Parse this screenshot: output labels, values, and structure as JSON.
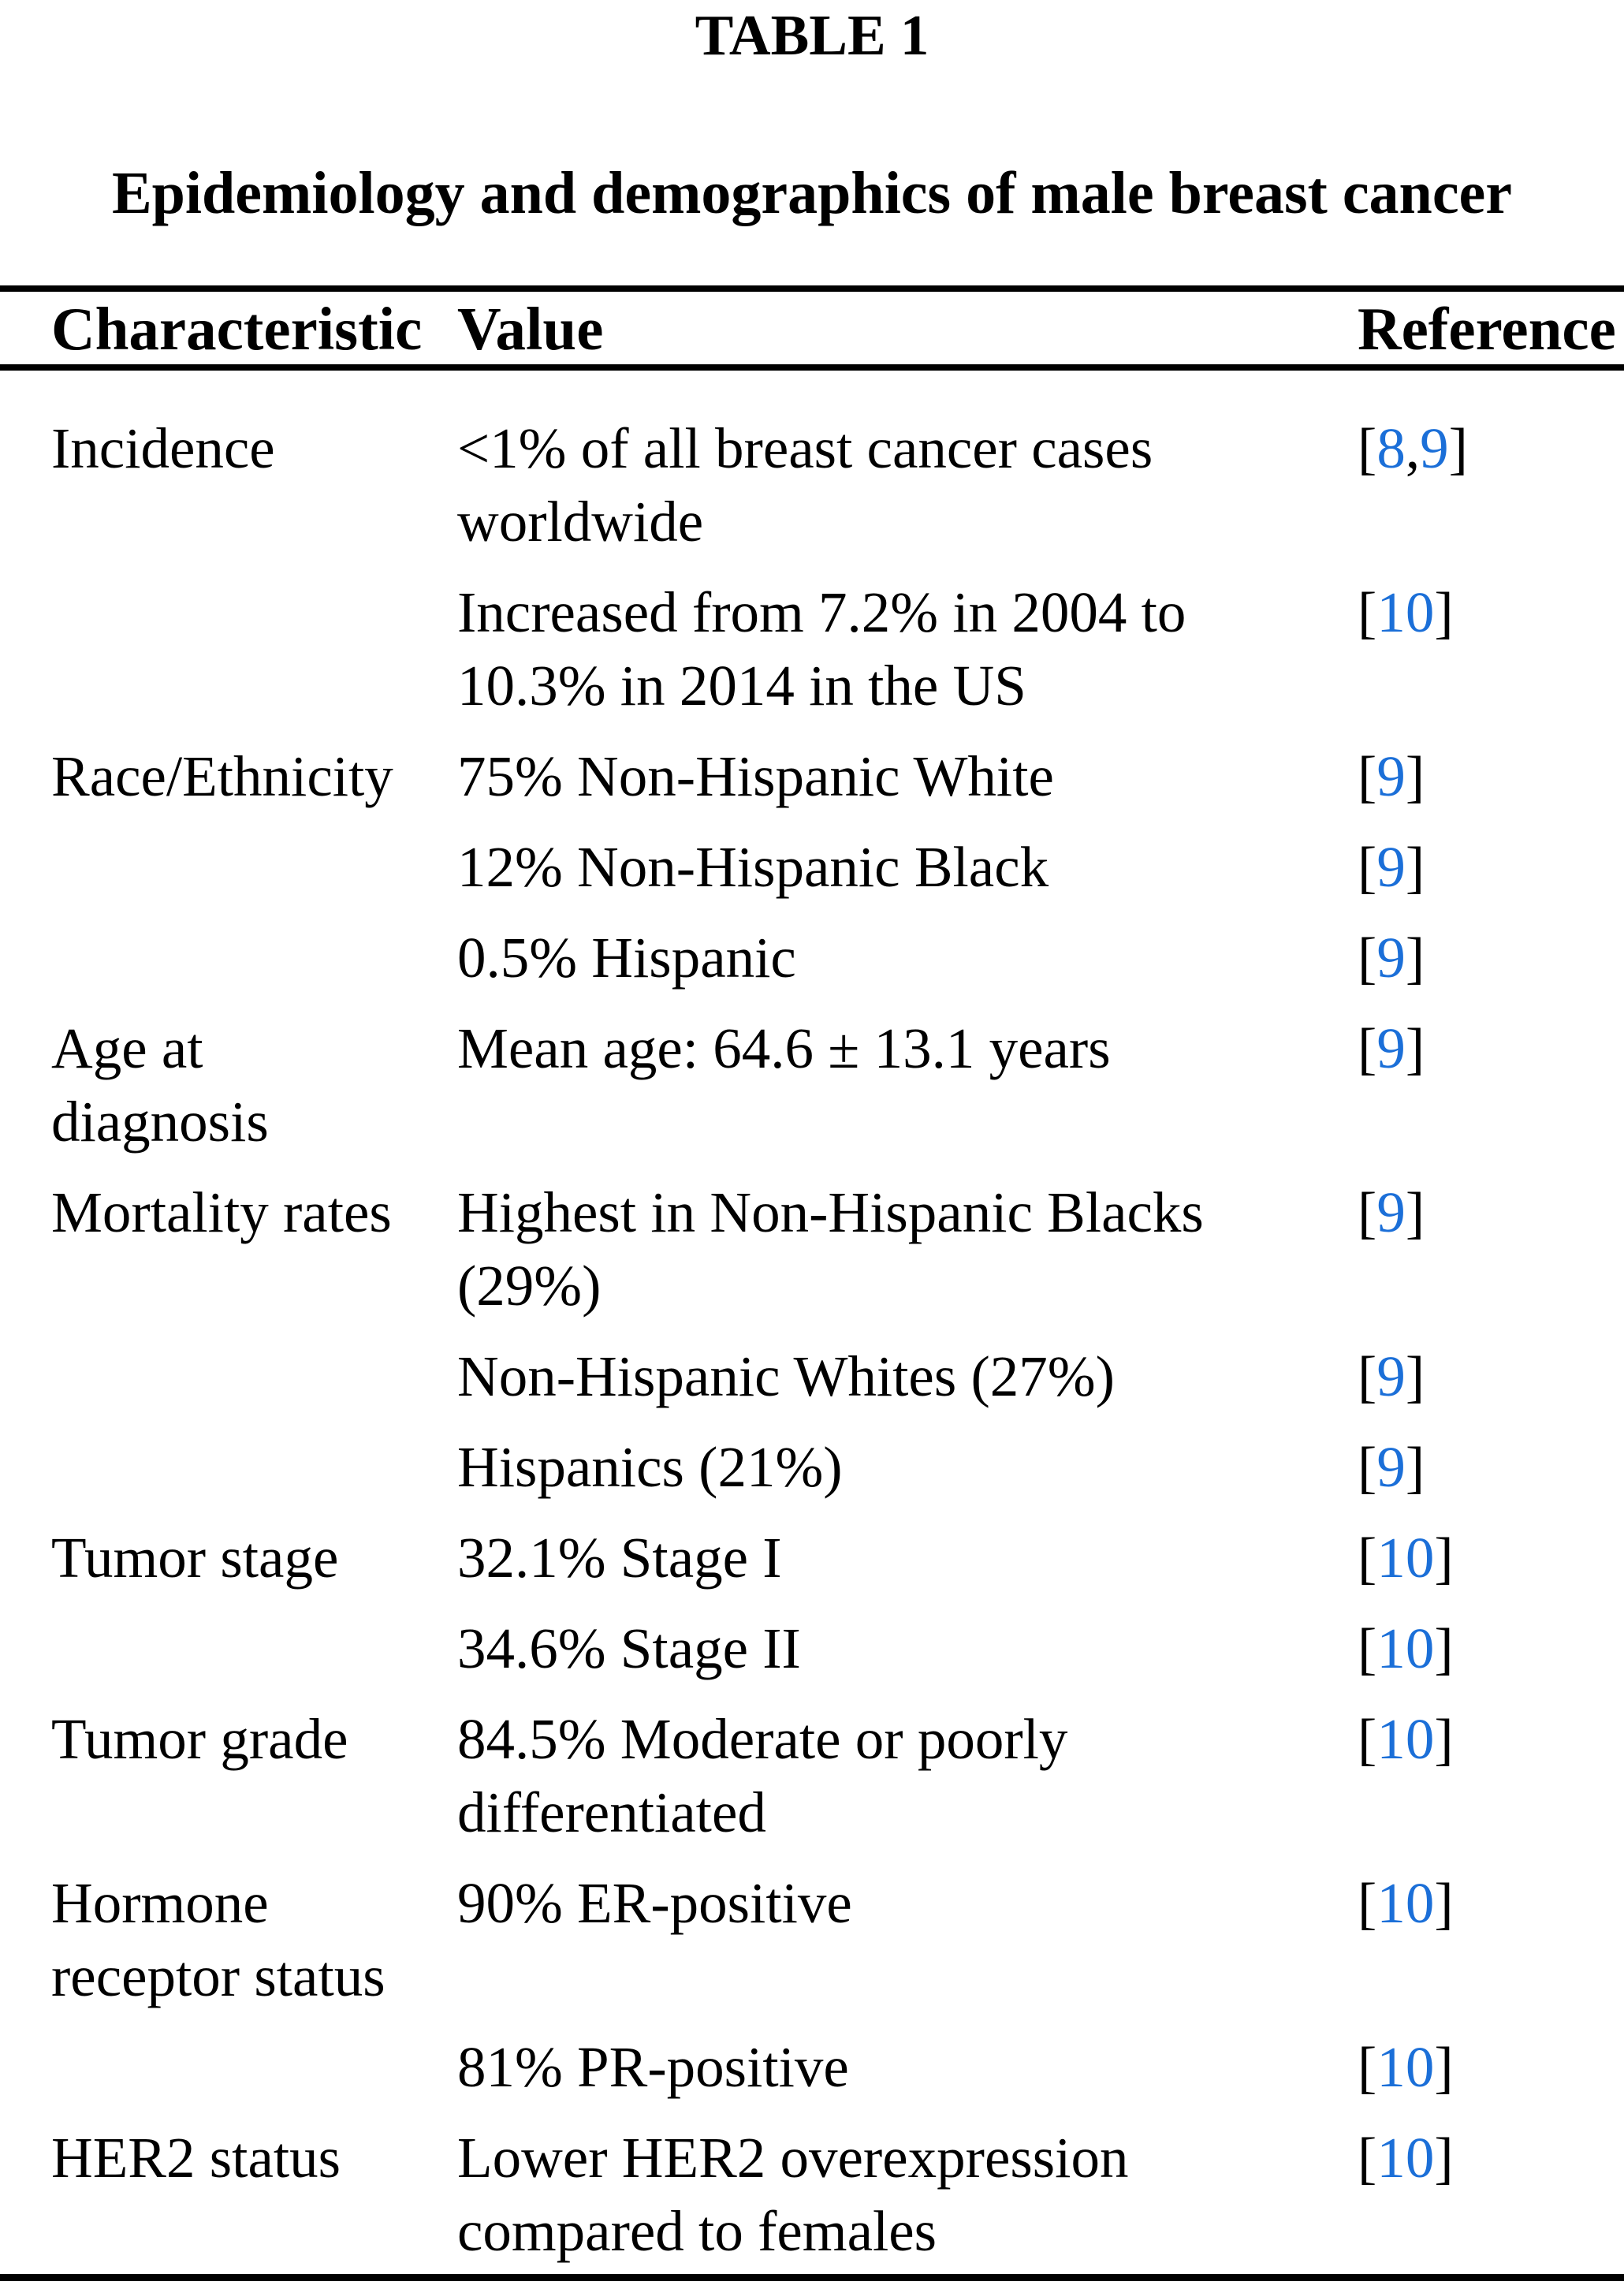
{
  "page": {
    "table_label": "TABLE 1",
    "table_title": "Epidemiology and demographics of male breast cancer"
  },
  "colors": {
    "background": "#ffffff",
    "text": "#000000",
    "citation_link_blue": "#1b6fd8"
  },
  "punctuation": {
    "bracket_open": "[",
    "bracket_close": "]",
    "comma": ","
  },
  "table": {
    "columns": [
      "Characteristic",
      "Value",
      "Reference"
    ],
    "rows": [
      {
        "characteristic": "Incidence",
        "value": "<1% of all breast cancer cases worldwide",
        "refs": [
          "8",
          "9"
        ]
      },
      {
        "characteristic": "",
        "value": "Increased from 7.2% in 2004 to 10.3% in 2014 in the US",
        "refs": [
          "10"
        ]
      },
      {
        "characteristic": "Race/Ethnicity",
        "value": "75% Non-Hispanic White",
        "refs": [
          "9"
        ]
      },
      {
        "characteristic": "",
        "value": "12% Non-Hispanic Black",
        "refs": [
          "9"
        ]
      },
      {
        "characteristic": "",
        "value": "0.5% Hispanic",
        "refs": [
          "9"
        ]
      },
      {
        "characteristic": "Age at diagnosis",
        "value": "Mean age: 64.6 ± 13.1 years",
        "refs": [
          "9"
        ]
      },
      {
        "characteristic": "Mortality rates",
        "value": "Highest in Non-Hispanic Blacks (29%)",
        "refs": [
          "9"
        ]
      },
      {
        "characteristic": "",
        "value": "Non-Hispanic Whites (27%)",
        "refs": [
          "9"
        ]
      },
      {
        "characteristic": "",
        "value": "Hispanics (21%)",
        "refs": [
          "9"
        ]
      },
      {
        "characteristic": "Tumor stage",
        "value": "32.1% Stage I",
        "refs": [
          "10"
        ]
      },
      {
        "characteristic": "",
        "value": "34.6% Stage II",
        "refs": [
          "10"
        ]
      },
      {
        "characteristic": "Tumor grade",
        "value": "84.5% Moderate or poorly differentiated",
        "refs": [
          "10"
        ]
      },
      {
        "characteristic": "Hormone receptor status",
        "value": "90% ER-positive",
        "refs": [
          "10"
        ]
      },
      {
        "characteristic": "",
        "value": "81% PR-positive",
        "refs": [
          "10"
        ]
      },
      {
        "characteristic": "HER2 status",
        "value": "Lower HER2 overexpression compared to females",
        "refs": [
          "10"
        ]
      }
    ]
  }
}
